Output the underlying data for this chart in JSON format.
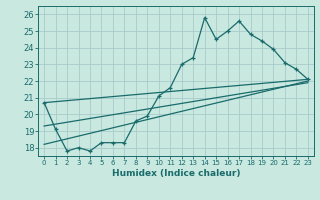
{
  "xlabel": "Humidex (Indice chaleur)",
  "xlim": [
    -0.5,
    23.5
  ],
  "ylim": [
    17.5,
    26.5
  ],
  "xticks": [
    0,
    1,
    2,
    3,
    4,
    5,
    6,
    7,
    8,
    9,
    10,
    11,
    12,
    13,
    14,
    15,
    16,
    17,
    18,
    19,
    20,
    21,
    22,
    23
  ],
  "yticks": [
    18,
    19,
    20,
    21,
    22,
    23,
    24,
    25,
    26
  ],
  "background_color": "#c8e8e0",
  "grid_color": "#a8cccc",
  "line_color": "#1a6b6b",
  "jagged_x": [
    0,
    1,
    2,
    3,
    4,
    5,
    6,
    7,
    8,
    9,
    10,
    11,
    12,
    13,
    14,
    15,
    16,
    17,
    18,
    19,
    20,
    21,
    22,
    23
  ],
  "jagged_y": [
    20.7,
    19.1,
    17.8,
    18.0,
    17.8,
    18.3,
    18.3,
    18.3,
    19.6,
    19.9,
    21.1,
    21.6,
    23.0,
    23.4,
    25.8,
    24.5,
    25.0,
    25.6,
    24.8,
    24.4,
    23.9,
    23.1,
    22.7,
    22.1
  ],
  "trend1_x": [
    0,
    23
  ],
  "trend1_y": [
    20.7,
    22.1
  ],
  "trend2_x": [
    0,
    23
  ],
  "trend2_y": [
    19.3,
    21.9
  ],
  "trend3_x": [
    0,
    23
  ],
  "trend3_y": [
    18.2,
    22.0
  ],
  "figwidth": 3.2,
  "figheight": 2.0,
  "dpi": 100
}
